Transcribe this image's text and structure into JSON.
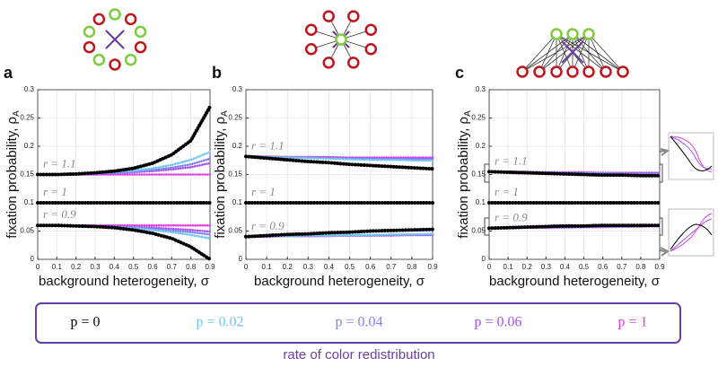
{
  "legend": {
    "title": "rate of color redistribution",
    "items": [
      {
        "label": "p = 0",
        "color": "#000000"
      },
      {
        "label": "p = 0.02",
        "color": "#6ec6f0"
      },
      {
        "label": "p = 0.04",
        "color": "#7f7ff5"
      },
      {
        "label": "p = 0.06",
        "color": "#a64ff0"
      },
      {
        "label": "p = 1",
        "color": "#e040e0"
      }
    ]
  },
  "chart_data": [
    {
      "type": "line",
      "panel": "a",
      "xlabel": "background heterogeneity, σ",
      "ylabel": "fixation probability, ρ",
      "ylabel_sub": "A",
      "xlim": [
        0,
        0.9
      ],
      "ylim": [
        0,
        0.3
      ],
      "xticks": [
        0,
        0.1,
        0.2,
        0.3,
        0.4,
        0.5,
        0.6,
        0.7,
        0.8,
        0.9
      ],
      "yticks": [
        0,
        0.05,
        0.1,
        0.15,
        0.2,
        0.25,
        0.3
      ],
      "grid": true,
      "x": [
        0,
        0.1,
        0.2,
        0.3,
        0.4,
        0.5,
        0.6,
        0.7,
        0.8,
        0.9
      ],
      "groups": [
        {
          "label": "r = 1.1",
          "series": [
            {
              "color": "#000000",
              "values": [
                0.15,
                0.15,
                0.151,
                0.153,
                0.156,
                0.161,
                0.17,
                0.185,
                0.21,
                0.27
              ]
            },
            {
              "color": "#6ec6f0",
              "values": [
                0.15,
                0.15,
                0.151,
                0.152,
                0.154,
                0.157,
                0.161,
                0.167,
                0.176,
                0.19
              ]
            },
            {
              "color": "#7f7ff5",
              "values": [
                0.15,
                0.15,
                0.151,
                0.152,
                0.153,
                0.155,
                0.158,
                0.162,
                0.168,
                0.178
              ]
            },
            {
              "color": "#a64ff0",
              "values": [
                0.15,
                0.15,
                0.15,
                0.151,
                0.152,
                0.154,
                0.156,
                0.159,
                0.163,
                0.17
              ]
            },
            {
              "color": "#e040e0",
              "values": [
                0.15,
                0.15,
                0.15,
                0.15,
                0.15,
                0.15,
                0.15,
                0.15,
                0.15,
                0.15
              ]
            }
          ]
        },
        {
          "label": "r = 1",
          "series": [
            {
              "color": "#000000",
              "values": [
                0.1,
                0.1,
                0.1,
                0.1,
                0.1,
                0.1,
                0.1,
                0.1,
                0.1,
                0.1
              ]
            }
          ]
        },
        {
          "label": "r = 0.9",
          "series": [
            {
              "color": "#000000",
              "values": [
                0.06,
                0.06,
                0.059,
                0.058,
                0.056,
                0.052,
                0.046,
                0.037,
                0.022,
                0
              ]
            },
            {
              "color": "#6ec6f0",
              "values": [
                0.06,
                0.06,
                0.059,
                0.058,
                0.057,
                0.055,
                0.052,
                0.048,
                0.043,
                0.037
              ]
            },
            {
              "color": "#7f7ff5",
              "values": [
                0.06,
                0.06,
                0.059,
                0.059,
                0.058,
                0.056,
                0.054,
                0.051,
                0.048,
                0.044
              ]
            },
            {
              "color": "#a64ff0",
              "values": [
                0.06,
                0.06,
                0.06,
                0.059,
                0.058,
                0.057,
                0.056,
                0.054,
                0.052,
                0.049
              ]
            },
            {
              "color": "#e040e0",
              "values": [
                0.06,
                0.06,
                0.06,
                0.06,
                0.06,
                0.06,
                0.06,
                0.06,
                0.06,
                0.06
              ]
            }
          ]
        }
      ]
    },
    {
      "type": "line",
      "panel": "b",
      "xlabel": "background heterogeneity, σ",
      "ylabel": "fixation probability, ρ",
      "ylabel_sub": "A",
      "xlim": [
        0,
        0.9
      ],
      "ylim": [
        0,
        0.3
      ],
      "xticks": [
        0,
        0.1,
        0.2,
        0.3,
        0.4,
        0.5,
        0.6,
        0.7,
        0.8,
        0.9
      ],
      "yticks": [
        0,
        0.05,
        0.1,
        0.15,
        0.2,
        0.25,
        0.3
      ],
      "grid": true,
      "x": [
        0,
        0.1,
        0.2,
        0.3,
        0.4,
        0.5,
        0.6,
        0.7,
        0.8,
        0.9
      ],
      "groups": [
        {
          "label": "r = 1.1",
          "series": [
            {
              "color": "#000000",
              "values": [
                0.182,
                0.179,
                0.176,
                0.173,
                0.171,
                0.168,
                0.166,
                0.164,
                0.162,
                0.16
              ]
            },
            {
              "color": "#6ec6f0",
              "values": [
                0.182,
                0.181,
                0.18,
                0.179,
                0.178,
                0.177,
                0.176,
                0.176,
                0.175,
                0.175
              ]
            },
            {
              "color": "#7f7ff5",
              "values": [
                0.182,
                0.181,
                0.18,
                0.18,
                0.179,
                0.178,
                0.178,
                0.177,
                0.177,
                0.177
              ]
            },
            {
              "color": "#a64ff0",
              "values": [
                0.182,
                0.181,
                0.181,
                0.18,
                0.18,
                0.179,
                0.179,
                0.178,
                0.178,
                0.178
              ]
            },
            {
              "color": "#e040e0",
              "values": [
                0.182,
                0.182,
                0.181,
                0.181,
                0.181,
                0.18,
                0.18,
                0.18,
                0.18,
                0.18
              ]
            }
          ]
        },
        {
          "label": "r = 1",
          "series": [
            {
              "color": "#000000",
              "values": [
                0.1,
                0.1,
                0.1,
                0.1,
                0.1,
                0.1,
                0.1,
                0.1,
                0.1,
                0.1
              ]
            }
          ]
        },
        {
          "label": "r = 0.9",
          "series": [
            {
              "color": "#000000",
              "values": [
                0.04,
                0.042,
                0.044,
                0.045,
                0.047,
                0.048,
                0.05,
                0.051,
                0.052,
                0.053
              ]
            },
            {
              "color": "#6ec6f0",
              "values": [
                0.04,
                0.041,
                0.041,
                0.042,
                0.042,
                0.043,
                0.043,
                0.044,
                0.044,
                0.045
              ]
            },
            {
              "color": "#7f7ff5",
              "values": [
                0.04,
                0.041,
                0.041,
                0.042,
                0.042,
                0.042,
                0.043,
                0.043,
                0.044,
                0.044
              ]
            },
            {
              "color": "#a64ff0",
              "values": [
                0.04,
                0.04,
                0.041,
                0.041,
                0.042,
                0.042,
                0.042,
                0.043,
                0.043,
                0.043
              ]
            },
            {
              "color": "#e040e0",
              "values": [
                0.04,
                0.04,
                0.041,
                0.041,
                0.041,
                0.042,
                0.042,
                0.042,
                0.043,
                0.043
              ]
            }
          ]
        }
      ]
    },
    {
      "type": "line",
      "panel": "c",
      "xlabel": "background heterogeneity, σ",
      "ylabel": "fixation probability, ρ",
      "ylabel_sub": "A",
      "xlim": [
        0,
        0.9
      ],
      "ylim": [
        0,
        0.3
      ],
      "xticks": [
        0,
        0.1,
        0.2,
        0.3,
        0.4,
        0.5,
        0.6,
        0.7,
        0.8,
        0.9
      ],
      "yticks": [
        0,
        0.05,
        0.1,
        0.15,
        0.2,
        0.25,
        0.3
      ],
      "grid": true,
      "x": [
        0,
        0.1,
        0.2,
        0.3,
        0.4,
        0.5,
        0.6,
        0.7,
        0.8,
        0.9
      ],
      "groups": [
        {
          "label": "r = 1.1",
          "series": [
            {
              "color": "#000000",
              "values": [
                0.155,
                0.154,
                0.153,
                0.152,
                0.151,
                0.15,
                0.149,
                0.149,
                0.148,
                0.148
              ]
            },
            {
              "color": "#6ec6f0",
              "values": [
                0.155,
                0.154,
                0.154,
                0.153,
                0.152,
                0.152,
                0.151,
                0.151,
                0.15,
                0.15
              ]
            },
            {
              "color": "#7f7ff5",
              "values": [
                0.155,
                0.155,
                0.154,
                0.153,
                0.153,
                0.152,
                0.152,
                0.151,
                0.151,
                0.151
              ]
            },
            {
              "color": "#a64ff0",
              "values": [
                0.155,
                0.155,
                0.154,
                0.154,
                0.153,
                0.153,
                0.152,
                0.152,
                0.152,
                0.152
              ]
            },
            {
              "color": "#e040e0",
              "values": [
                0.155,
                0.155,
                0.155,
                0.154,
                0.154,
                0.154,
                0.153,
                0.153,
                0.153,
                0.153
              ]
            }
          ]
        },
        {
          "label": "r = 1",
          "series": [
            {
              "color": "#000000",
              "values": [
                0.1,
                0.1,
                0.1,
                0.1,
                0.1,
                0.1,
                0.1,
                0.1,
                0.1,
                0.1
              ]
            }
          ]
        },
        {
          "label": "r = 0.9",
          "series": [
            {
              "color": "#000000",
              "values": [
                0.055,
                0.056,
                0.057,
                0.058,
                0.059,
                0.059,
                0.06,
                0.06,
                0.06,
                0.06
              ]
            },
            {
              "color": "#6ec6f0",
              "values": [
                0.055,
                0.056,
                0.057,
                0.057,
                0.058,
                0.058,
                0.059,
                0.059,
                0.06,
                0.06
              ]
            },
            {
              "color": "#7f7ff5",
              "values": [
                0.055,
                0.056,
                0.056,
                0.057,
                0.057,
                0.058,
                0.058,
                0.059,
                0.059,
                0.06
              ]
            },
            {
              "color": "#a64ff0",
              "values": [
                0.055,
                0.055,
                0.056,
                0.056,
                0.057,
                0.057,
                0.058,
                0.058,
                0.059,
                0.059
              ]
            },
            {
              "color": "#e040e0",
              "values": [
                0.055,
                0.055,
                0.056,
                0.056,
                0.056,
                0.057,
                0.057,
                0.058,
                0.058,
                0.059
              ]
            }
          ]
        }
      ]
    }
  ]
}
